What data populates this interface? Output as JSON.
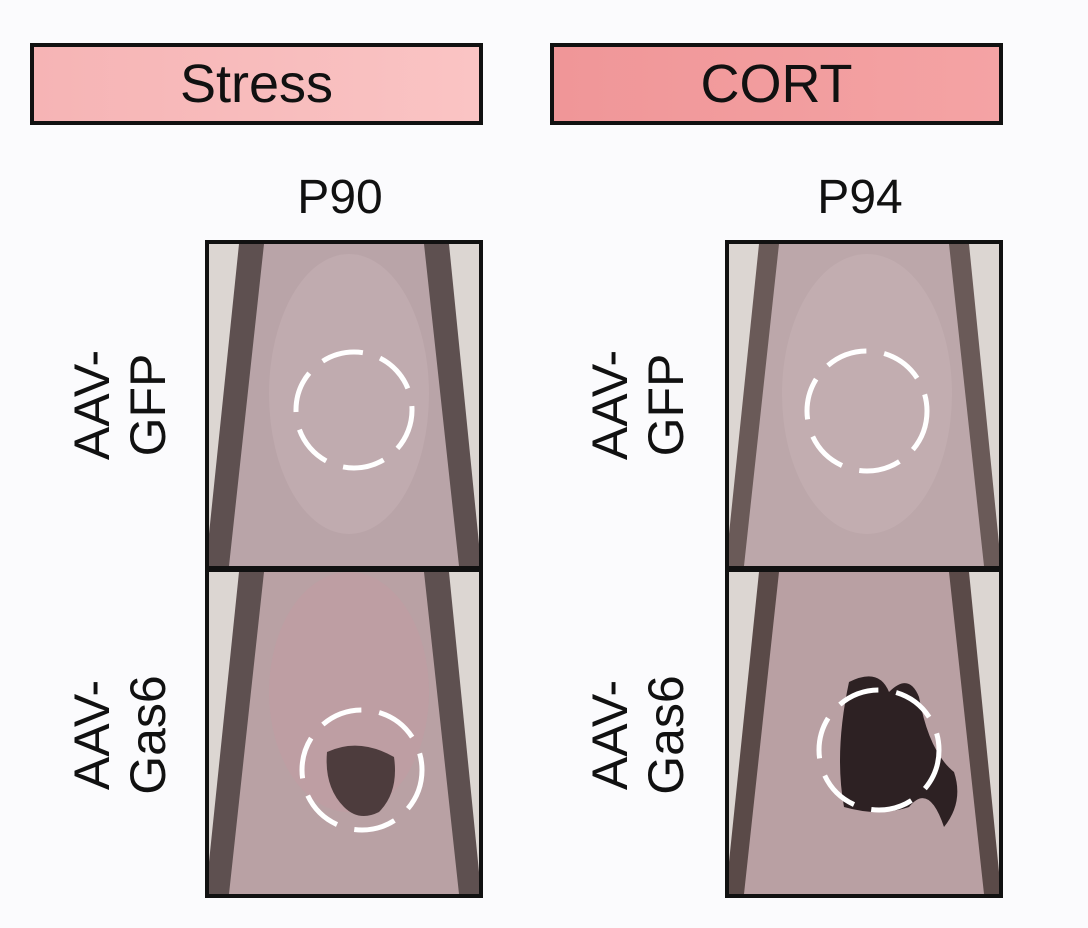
{
  "conditions": [
    {
      "label": "Stress",
      "color": "#f7b9b9",
      "timepoint": "P90"
    },
    {
      "label": "CORT",
      "color": "#f29c9e",
      "timepoint": "P94"
    }
  ],
  "rows": [
    {
      "line1": "AAV-",
      "line2": "GFP"
    },
    {
      "line1": "AAV-",
      "line2": "Gas6"
    }
  ]
}
